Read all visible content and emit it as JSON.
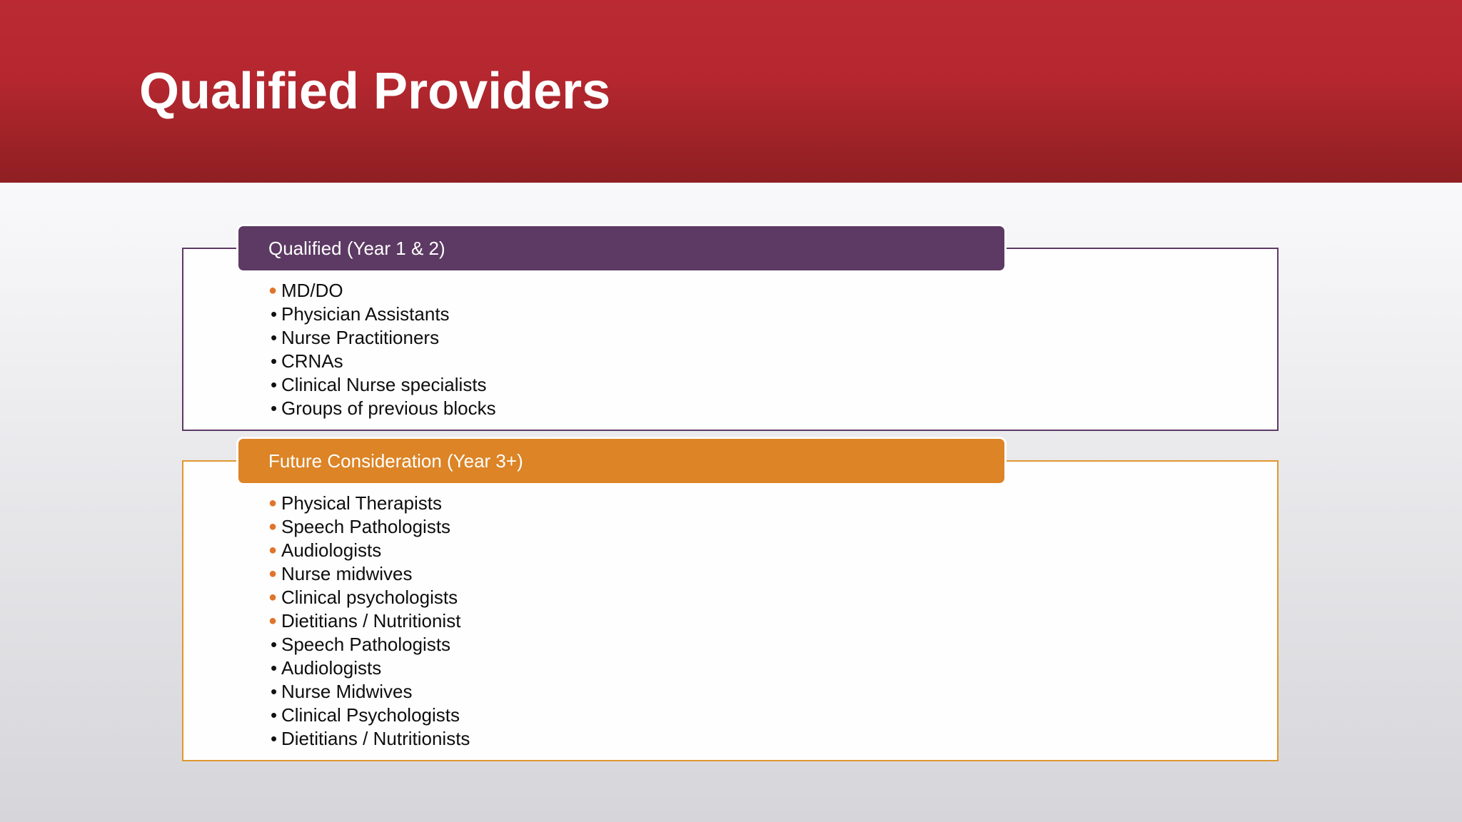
{
  "slide": {
    "title": "Qualified Providers",
    "colors": {
      "header": "#b5272f",
      "qualified_accent": "#5c3a63",
      "future_accent": "#dc8426",
      "bullet_orange": "#e0742c"
    }
  },
  "qualified": {
    "label": "Qualified (Year 1 & 2)",
    "items": [
      {
        "text": "MD/DO",
        "bullet": "orange-dot"
      },
      {
        "text": "Physician Assistants",
        "bullet": "black-dot"
      },
      {
        "text": "Nurse Practitioners",
        "bullet": "black-dot"
      },
      {
        "text": "CRNAs",
        "bullet": "black-dot"
      },
      {
        "text": "Clinical Nurse specialists",
        "bullet": "black-dot"
      },
      {
        "text": "Groups of previous blocks",
        "bullet": "black-dot"
      }
    ]
  },
  "future": {
    "label": "Future Consideration (Year 3+)",
    "items": [
      {
        "text": "Physical Therapists",
        "bullet": "orange-dot"
      },
      {
        "text": "Speech Pathologists",
        "bullet": "orange-dot"
      },
      {
        "text": "Audiologists",
        "bullet": "orange-dot"
      },
      {
        "text": "Nurse midwives",
        "bullet": "orange-dot"
      },
      {
        "text": "Clinical psychologists",
        "bullet": "orange-dot"
      },
      {
        "text": "Dietitians / Nutritionist",
        "bullet": "orange-dot"
      },
      {
        "text": "Speech Pathologists",
        "bullet": "black-dot"
      },
      {
        "text": "Audiologists",
        "bullet": "black-dot"
      },
      {
        "text": "Nurse Midwives",
        "bullet": "black-dot"
      },
      {
        "text": "Clinical Psychologists",
        "bullet": "black-dot"
      },
      {
        "text": "Dietitians / Nutritionists",
        "bullet": "black-dot"
      }
    ]
  }
}
